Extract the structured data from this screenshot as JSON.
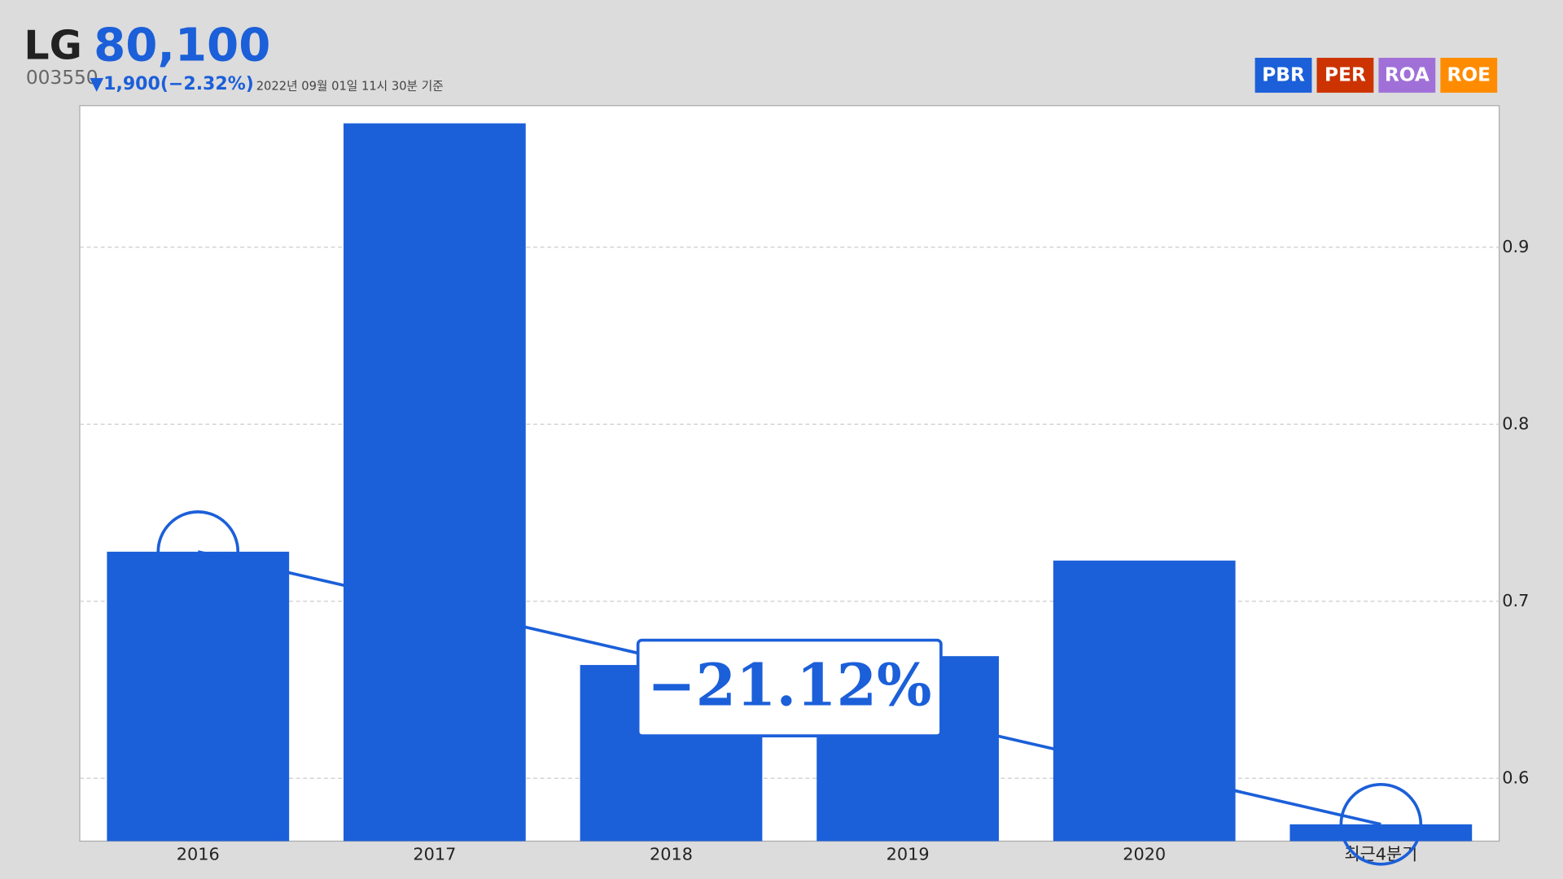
{
  "header": {
    "name": "LG",
    "price": "80,100",
    "code": "003550",
    "change": "▼1,900(−2.32%)",
    "timestamp": "2022년 09월 01일 11시 30분 기준"
  },
  "tabs": [
    {
      "label": "PBR",
      "color": "#1b5fd9"
    },
    {
      "label": "PER",
      "color": "#cc3300"
    },
    {
      "label": "ROA",
      "color": "#a070d8"
    },
    {
      "label": "ROE",
      "color": "#ff8c00"
    }
  ],
  "chart_data": {
    "type": "bar",
    "categories": [
      "2016",
      "2017",
      "2018",
      "2019",
      "2020",
      "최근4분기"
    ],
    "values": [
      0.728,
      0.97,
      0.664,
      0.669,
      0.723,
      0.574
    ],
    "color": "#1b5fd9",
    "ylim": [
      0.5645,
      0.98
    ],
    "yticks": [
      0.6,
      0.7,
      0.8,
      0.9
    ],
    "grid": true,
    "annotation": "−21.12%"
  }
}
